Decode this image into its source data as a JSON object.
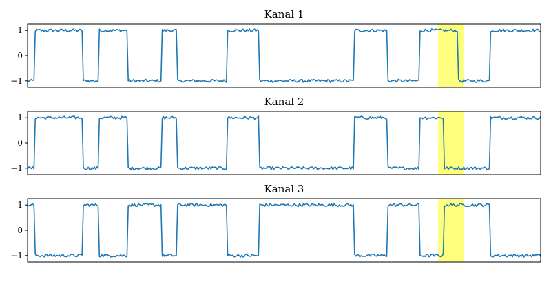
{
  "chart_data": [
    {
      "type": "line",
      "title": "Kanal 1",
      "xlabel": "",
      "ylabel": "",
      "xlim": [
        0,
        800
      ],
      "ylim": [
        -1.25,
        1.25
      ],
      "yticks": [
        1,
        0,
        -1
      ],
      "ytick_labels": [
        "1",
        "0",
        "−1"
      ],
      "xticks": [],
      "grid": false,
      "highlight": {
        "x_start": 640,
        "x_end": 680,
        "color": "#ffff7f"
      },
      "series": [
        {
          "color": "#1f77b4",
          "x": [
            0,
            10,
            12,
            85,
            87,
            110,
            112,
            155,
            157,
            208,
            210,
            232,
            234,
            310,
            312,
            360,
            362,
            508,
            510,
            560,
            562,
            610,
            612,
            670,
            672,
            720,
            722,
            800
          ],
          "y": [
            -1,
            -1,
            1,
            1,
            -1,
            -1,
            1,
            1,
            -1,
            -1,
            1,
            1,
            -1,
            -1,
            1,
            1,
            -1,
            -1,
            1,
            1,
            -1,
            -1,
            1,
            1,
            -1,
            -1,
            1,
            1
          ]
        }
      ]
    },
    {
      "type": "line",
      "title": "Kanal 2",
      "xlabel": "",
      "ylabel": "",
      "xlim": [
        0,
        800
      ],
      "ylim": [
        -1.25,
        1.25
      ],
      "yticks": [
        1,
        0,
        -1
      ],
      "ytick_labels": [
        "1",
        "0",
        "−1"
      ],
      "xticks": [],
      "grid": false,
      "highlight": {
        "x_start": 640,
        "x_end": 680,
        "color": "#ffff7f"
      },
      "series": [
        {
          "color": "#1f77b4",
          "x": [
            0,
            10,
            12,
            85,
            87,
            110,
            112,
            155,
            157,
            208,
            210,
            232,
            234,
            310,
            312,
            360,
            362,
            508,
            510,
            560,
            562,
            610,
            612,
            648,
            650,
            720,
            722,
            800
          ],
          "y": [
            -1,
            -1,
            1,
            1,
            -1,
            -1,
            1,
            1,
            -1,
            -1,
            1,
            1,
            -1,
            -1,
            1,
            1,
            -1,
            -1,
            1,
            1,
            -1,
            -1,
            1,
            1,
            -1,
            -1,
            1,
            1
          ]
        }
      ]
    },
    {
      "type": "line",
      "title": "Kanal 3",
      "xlabel": "",
      "ylabel": "",
      "xlim": [
        0,
        800
      ],
      "ylim": [
        -1.25,
        1.25
      ],
      "yticks": [
        1,
        0,
        -1
      ],
      "ytick_labels": [
        "1",
        "0",
        "−1"
      ],
      "xticks": [],
      "grid": false,
      "highlight": {
        "x_start": 640,
        "x_end": 680,
        "color": "#ffff7f"
      },
      "series": [
        {
          "color": "#1f77b4",
          "x": [
            0,
            10,
            12,
            85,
            87,
            110,
            112,
            155,
            157,
            208,
            210,
            232,
            234,
            310,
            312,
            360,
            362,
            508,
            510,
            560,
            562,
            610,
            612,
            648,
            650,
            720,
            722,
            800
          ],
          "y": [
            1,
            1,
            -1,
            -1,
            1,
            1,
            -1,
            -1,
            1,
            1,
            -1,
            -1,
            1,
            1,
            -1,
            -1,
            1,
            1,
            -1,
            -1,
            1,
            1,
            -1,
            -1,
            1,
            1,
            -1,
            -1
          ]
        }
      ]
    }
  ]
}
